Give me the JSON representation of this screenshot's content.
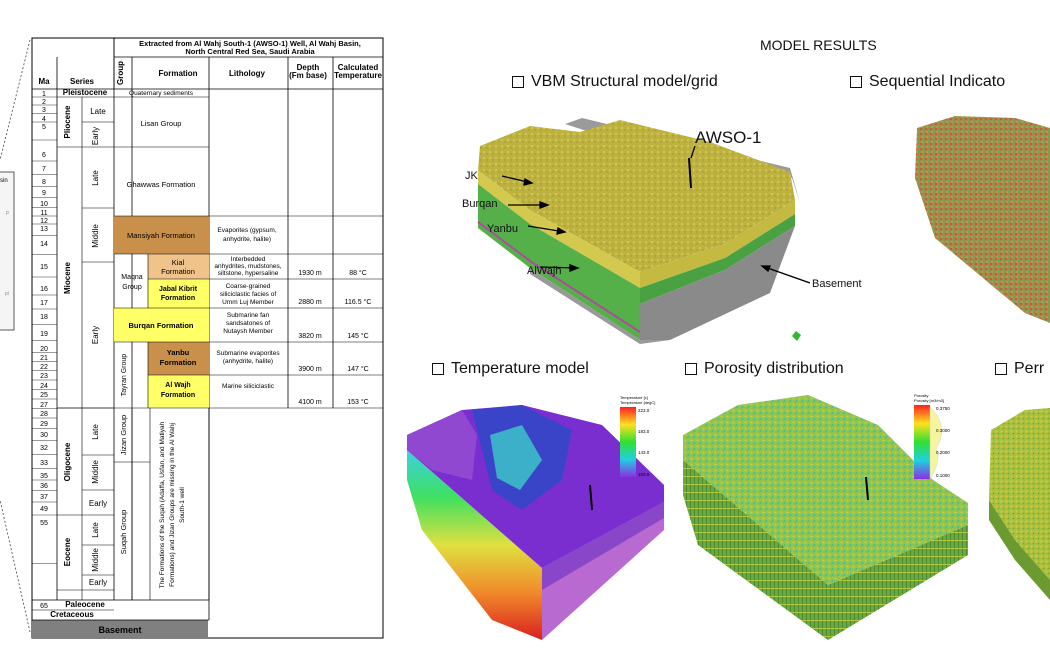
{
  "title_extracted": "Extracted from Al Wahj South-1 (AWSO-1) Well, Al Wahj Basin, North Central Red Sea, Saudi Arabia",
  "headers": {
    "ma": "Ma",
    "series": "Series",
    "group": "Group",
    "formation": "Formation",
    "lithology": "Lithology",
    "depth": "Depth (Fm base)",
    "temp": "Calculated Temperature"
  },
  "ma_values": [
    "1",
    "2",
    "3",
    "4",
    "5",
    "6",
    "7",
    "8",
    "9",
    "10",
    "11",
    "12",
    "13",
    "14",
    "15",
    "16",
    "17",
    "18",
    "19",
    "20",
    "21",
    "22",
    "23",
    "24",
    "25",
    "27",
    "28",
    "29",
    "30",
    "32",
    "33",
    "35",
    "36",
    "37",
    "49",
    "55",
    "65"
  ],
  "epochs": [
    "Pleistocene",
    "Pliocene",
    "Miocene",
    "Oligocene",
    "Eocene",
    "Paleocene",
    "Cretaceous",
    "Basement"
  ],
  "subseries": [
    "Late",
    "Early",
    "Late",
    "Middle",
    "Early",
    "Late",
    "Middle",
    "Early",
    "Late",
    "Middle",
    "Early"
  ],
  "groups": {
    "maqna": "Maqna Group",
    "tayran": "Tayran Group",
    "jizan": "Jizan Group",
    "suqah": "Suqah Group"
  },
  "formations": {
    "quaternary": "Quaternary sediments",
    "lisan": "Lisan Group",
    "ghawwas": "Ghawwas Formation",
    "mansiyah": "Mansiyah Formation",
    "kial": "Kial Formation",
    "jabal": "Jabal Kibrit Formation",
    "burqan": "Burqan Formation",
    "yanbu": "Yanbu Formation",
    "alwajh": "Al Wajh Formation"
  },
  "lithologies": {
    "mansiyah": "Evaporites (gypsum, anhydrite, halite)",
    "kial": "Interbedded anhydrites, mudstones, siltstone, hypersaline",
    "jabal": "Coarse-grained siliciclastic facies of Umm Luj Member",
    "burqan": "Submarine fan sandsatones of Nutaysh Member",
    "yanbu": "Submarine evaporites (anhydrite, halite)",
    "alwajh": "Marine siliciclastic"
  },
  "depths": [
    "1930 m",
    "2880 m",
    "3820 m",
    "3900 m",
    "4100 m"
  ],
  "temps": [
    "88 °C",
    "116.5 °C",
    "145 °C",
    "147 °C",
    "153 °C"
  ],
  "missing_note": "The Formations of the Suqah (Adaffa, Usfan, and Matiyah Formations) and Jizan Groups are missing in the Al Wahj South-1 well",
  "left_fragment": {
    "a": "sin",
    "b": "p",
    "c": "pi"
  },
  "right": {
    "main_heading": "MODEL RESULTS",
    "vbm": "VBM Structural model/grid",
    "sequential": "Sequential Indicato",
    "temperature": "Temperature model",
    "porosity": "Porosity distribution",
    "perm": "Perr",
    "awso": "AWSO-1",
    "jk": "JK",
    "burqan": "Burqan",
    "yanbu": "Yanbu",
    "alwajh": "AlWajh",
    "basement": "Basement"
  },
  "temp_legend": {
    "title": "Temperature [c]",
    "subtitle": "Temperature [degC]",
    "ticks": [
      "223.0",
      "183.0",
      "143.0",
      "103.0"
    ]
  },
  "poro_legend": {
    "title": "Porosity",
    "subtitle": "Porosity [m3/m3]",
    "ticks": [
      "0.3750",
      "0.3000",
      "0.2000",
      "0.1000"
    ]
  },
  "colors": {
    "yellow": "#ffff66",
    "tan": "#d9a55a",
    "gray": "#7f7f7f",
    "model_yellow": "#c8c04a",
    "model_green": "#55b04a"
  }
}
